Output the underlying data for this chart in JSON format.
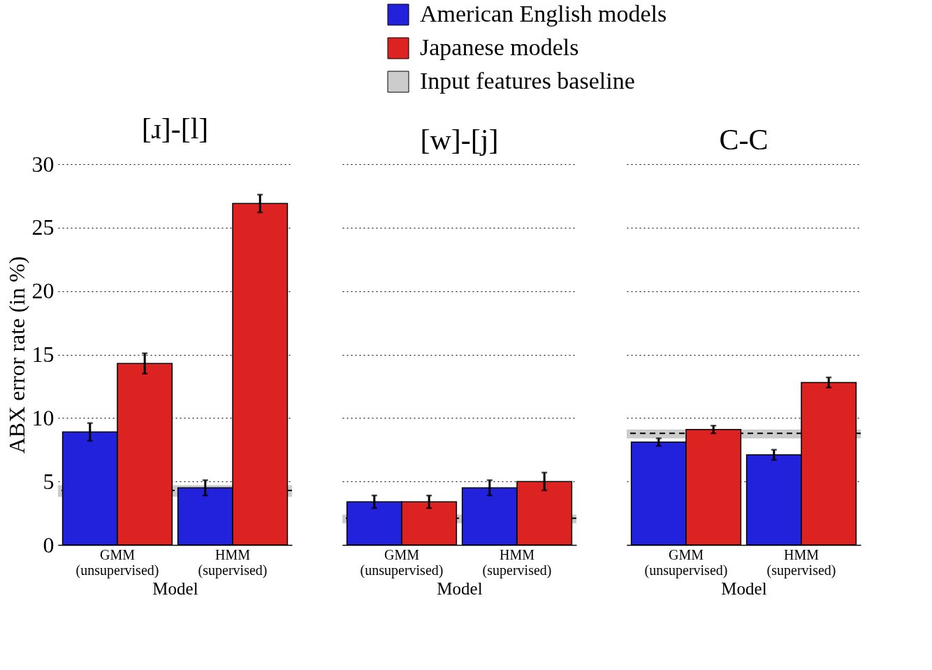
{
  "chart_data": [
    {
      "type": "bar",
      "title": "[ɹ]-[l]",
      "xlabel": "Model",
      "ylabel": "ABX error rate (in %)",
      "categories": [
        "GMM\n(unsupervised)",
        "HMM\n(supervised)"
      ],
      "series": [
        {
          "name": "American English models",
          "color": "#2222dd",
          "values": [
            8.9,
            4.5
          ],
          "errors": [
            0.7,
            0.6
          ]
        },
        {
          "name": "Japanese models",
          "color": "#dd2222",
          "values": [
            14.3,
            26.9
          ],
          "errors": [
            0.8,
            0.7
          ]
        }
      ],
      "ylim": [
        0,
        30
      ],
      "yticks": [
        0,
        5,
        10,
        15,
        20,
        25,
        30
      ],
      "grid": "y",
      "legend": "top",
      "ref_lines": [
        {
          "axis": "y",
          "value": 4.3,
          "line_style": "dashed",
          "color": "#000000"
        }
      ],
      "bands": [
        {
          "axis": "y",
          "from": 3.8,
          "to": 4.7,
          "label": "Input features baseline",
          "color": "#cccccc"
        }
      ]
    },
    {
      "type": "bar",
      "title": "[w]-[j]",
      "xlabel": "Model",
      "categories": [
        "GMM\n(unsupervised)",
        "HMM\n(supervised)"
      ],
      "series": [
        {
          "name": "American English models",
          "color": "#2222dd",
          "values": [
            3.4,
            4.5
          ],
          "errors": [
            0.5,
            0.6
          ]
        },
        {
          "name": "Japanese models",
          "color": "#dd2222",
          "values": [
            3.4,
            5.0
          ],
          "errors": [
            0.5,
            0.7
          ]
        }
      ],
      "ylim": [
        0,
        30
      ],
      "yticks": [
        0,
        5,
        10,
        15,
        20,
        25,
        30
      ],
      "grid": "y",
      "tick_labels": "x",
      "ref_lines": [
        {
          "axis": "y",
          "value": 2.1,
          "line_style": "dashed",
          "color": "#000000"
        }
      ],
      "bands": [
        {
          "axis": "y",
          "from": 1.7,
          "to": 2.4,
          "color": "#cccccc"
        }
      ]
    },
    {
      "type": "bar",
      "title": "C-C",
      "xlabel": "Model",
      "categories": [
        "GMM\n(unsupervised)",
        "HMM\n(supervised)"
      ],
      "series": [
        {
          "name": "American English models",
          "color": "#2222dd",
          "values": [
            8.1,
            7.1
          ],
          "errors": [
            0.3,
            0.4
          ]
        },
        {
          "name": "Japanese models",
          "color": "#dd2222",
          "values": [
            9.1,
            12.8
          ],
          "errors": [
            0.3,
            0.4
          ]
        }
      ],
      "ylim": [
        0,
        30
      ],
      "yticks": [
        0,
        5,
        10,
        15,
        20,
        25,
        30
      ],
      "grid": "y",
      "tick_labels": "x",
      "ref_lines": [
        {
          "axis": "y",
          "value": 8.8,
          "line_style": "dashed",
          "color": "#000000"
        }
      ],
      "bands": [
        {
          "axis": "y",
          "from": 8.4,
          "to": 9.1,
          "color": "#cccccc"
        }
      ]
    }
  ]
}
